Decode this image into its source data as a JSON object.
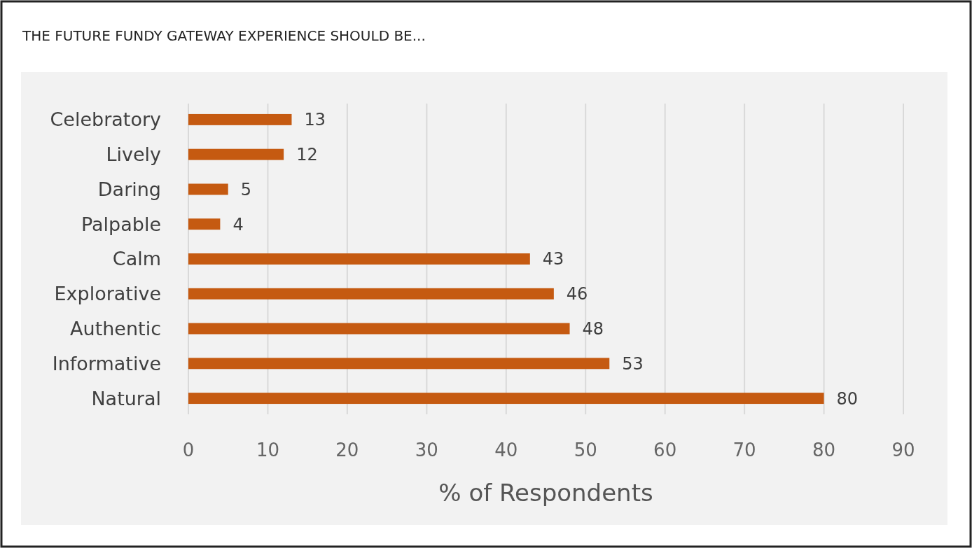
{
  "chart_data": {
    "type": "bar",
    "orientation": "horizontal",
    "title": "THE FUTURE FUNDY GATEWAY EXPERIENCE SHOULD BE...",
    "xlabel": "% of Respondents",
    "categories": [
      "Celebratory",
      "Lively",
      "Daring",
      "Palpable",
      "Calm",
      "Explorative",
      "Authentic",
      "Informative",
      "Natural"
    ],
    "values": [
      13,
      12,
      5,
      4,
      43,
      46,
      48,
      53,
      80
    ],
    "color": "#c55a11",
    "xlim": [
      0,
      90
    ],
    "xticks": [
      0,
      10,
      20,
      30,
      40,
      50,
      60,
      70,
      80,
      90
    ],
    "grid": "x",
    "data_labels": true
  }
}
